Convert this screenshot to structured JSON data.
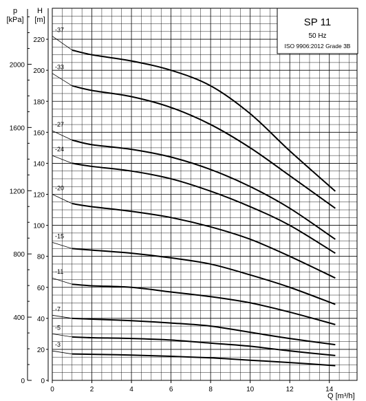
{
  "chart_data": {
    "type": "line",
    "title": "SP 11",
    "subtitle_lines": [
      "50 Hz",
      "ISO 9906:2012 Grade 3B"
    ],
    "xlabel": "Q [m³/h]",
    "ylabel_left": {
      "symbol": "p",
      "unit": "[kPa]"
    },
    "ylabel_right": {
      "symbol": "H",
      "unit": "[m]"
    },
    "xlim": [
      0,
      15.4
    ],
    "ylim": [
      0,
      240
    ],
    "p_lim_kpa": [
      0,
      2350
    ],
    "x_ticks": [
      "0",
      "2",
      "4",
      "6",
      "8",
      "10",
      "12",
      "14"
    ],
    "h_ticks": [
      "0",
      "20",
      "40",
      "60",
      "80",
      "100",
      "120",
      "140",
      "160",
      "180",
      "200",
      "220"
    ],
    "p_ticks": [
      "0",
      "400",
      "800",
      "1200",
      "1600",
      "2000"
    ],
    "grid": true,
    "series": [
      {
        "name": "-37",
        "x": [
          0,
          1,
          2,
          4,
          6,
          8,
          10,
          12,
          14.3
        ],
        "y": [
          222,
          213,
          210,
          206,
          200,
          190,
          172,
          148,
          122
        ]
      },
      {
        "name": "-33",
        "x": [
          0,
          1,
          2,
          4,
          6,
          8,
          10,
          12,
          14.3
        ],
        "y": [
          198,
          190,
          187,
          183,
          176,
          165,
          150,
          132,
          111
        ]
      },
      {
        "name": "-27",
        "x": [
          0,
          1,
          2,
          4,
          6,
          8,
          10,
          12,
          14.3
        ],
        "y": [
          161,
          155,
          152,
          149,
          144,
          136,
          125,
          111,
          91
        ]
      },
      {
        "name": "-24",
        "x": [
          0,
          1,
          2,
          4,
          6,
          8,
          10,
          12,
          14.3
        ],
        "y": [
          145,
          140,
          138,
          135,
          130,
          122,
          112,
          100,
          82
        ]
      },
      {
        "name": "-20",
        "x": [
          0,
          1,
          2,
          4,
          6,
          8,
          10,
          12,
          14.3
        ],
        "y": [
          120,
          114,
          112,
          109,
          105,
          99,
          91,
          80,
          66
        ]
      },
      {
        "name": "-15",
        "x": [
          0,
          1,
          2,
          4,
          6,
          8,
          10,
          12,
          14.3
        ],
        "y": [
          89,
          85,
          84,
          82,
          79,
          75,
          68,
          60,
          49
        ]
      },
      {
        "name": "-11",
        "x": [
          0,
          1,
          2,
          4,
          6,
          8,
          10,
          12,
          14.3
        ],
        "y": [
          66,
          62,
          61,
          60,
          57,
          54,
          50,
          44,
          36
        ]
      },
      {
        "name": "-7",
        "x": [
          0,
          1,
          2,
          4,
          6,
          8,
          10,
          12,
          14.3
        ],
        "y": [
          42,
          40,
          39.5,
          38.5,
          37,
          35,
          31,
          27,
          23
        ]
      },
      {
        "name": "-5",
        "x": [
          0,
          1,
          2,
          4,
          6,
          8,
          10,
          12,
          14.3
        ],
        "y": [
          30,
          28,
          27.5,
          27,
          26,
          24,
          22,
          19,
          16
        ]
      },
      {
        "name": "-3",
        "x": [
          0,
          1,
          2,
          4,
          6,
          8,
          10,
          12,
          14.3
        ],
        "y": [
          19,
          17,
          16.8,
          16.3,
          15.5,
          14.5,
          13,
          11.5,
          9.5
        ]
      }
    ],
    "colors": {
      "line": "#000000",
      "grid": "#000000",
      "background": "#ffffff"
    }
  }
}
